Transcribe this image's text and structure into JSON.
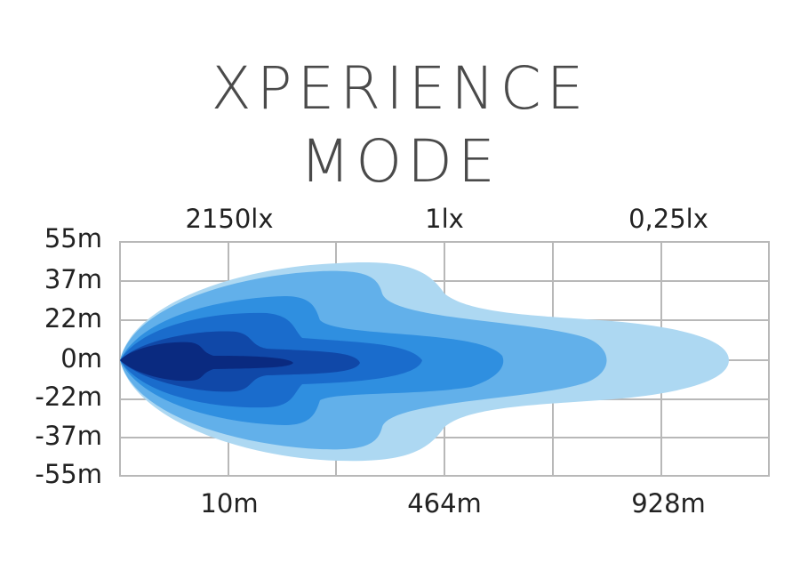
{
  "title": [
    "XPERIENCE",
    "MODE"
  ],
  "lux_labels": [
    "2150lx",
    "1lx",
    "0,25lx"
  ],
  "y_labels": [
    "55m",
    "37m",
    "22m",
    "0m",
    "-22m",
    "-37m",
    "-55m"
  ],
  "x_labels": [
    "10m",
    "464m",
    "928m"
  ]
}
